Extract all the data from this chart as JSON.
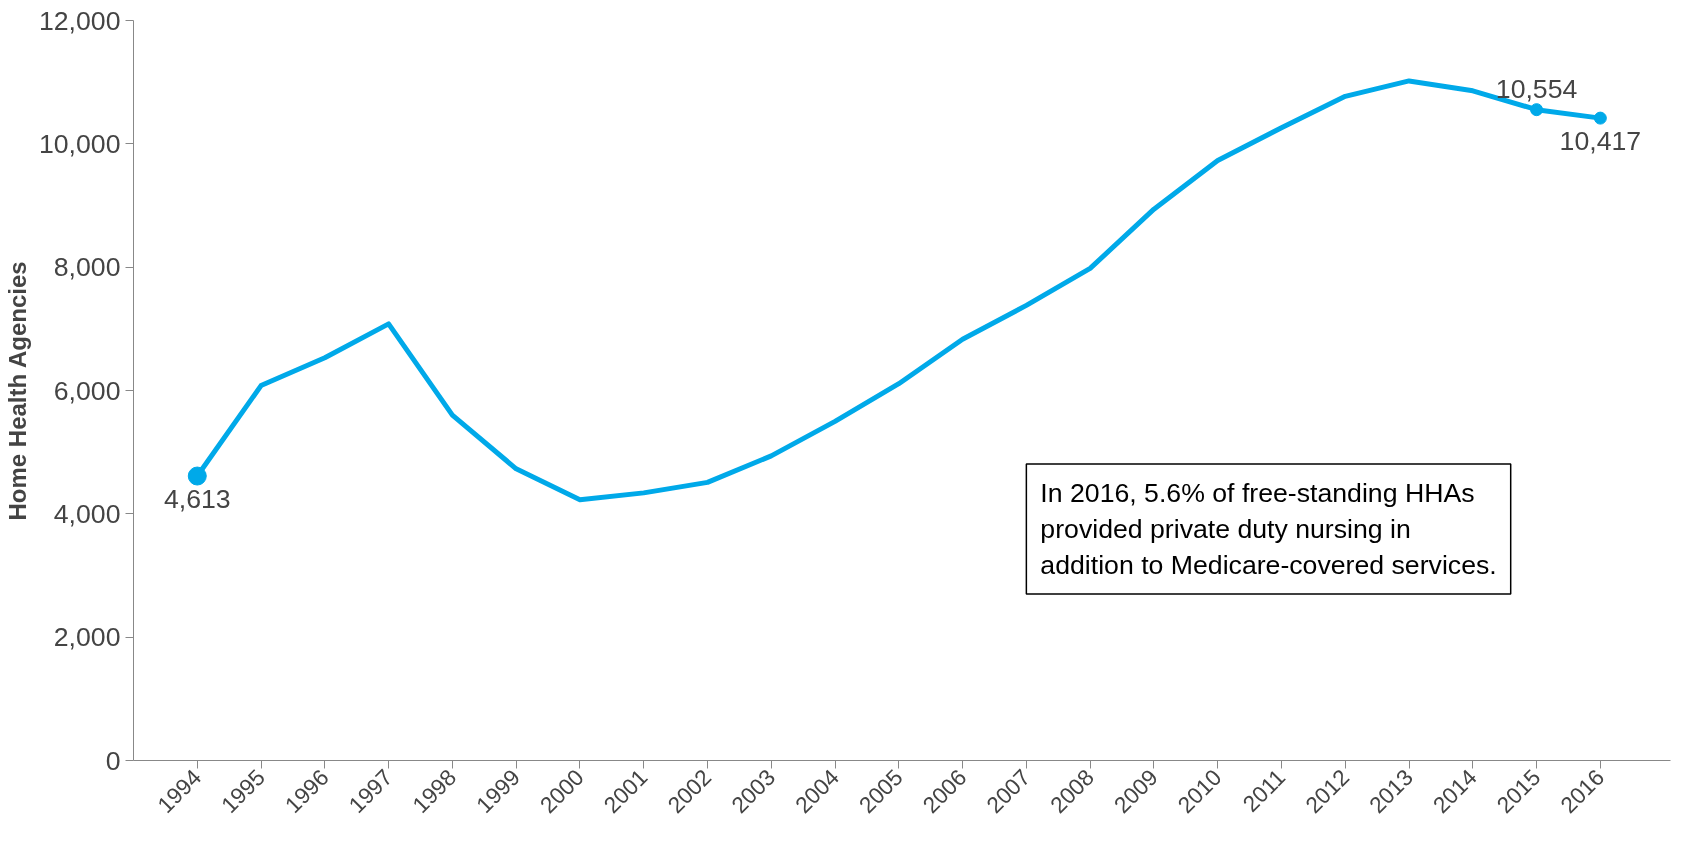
{
  "chart_data": {
    "type": "line",
    "ylabel": "Home Health Agencies",
    "categories": [
      "1994",
      "1995",
      "1996",
      "1997",
      "1998",
      "1999",
      "2000",
      "2001",
      "2002",
      "2003",
      "2004",
      "2005",
      "2006",
      "2007",
      "2008",
      "2009",
      "2010",
      "2011",
      "2012",
      "2013",
      "2014",
      "2015",
      "2016"
    ],
    "series": [
      {
        "color": "#00a9e9",
        "values": [
          4613,
          6080,
          6530,
          7080,
          5600,
          4730,
          4230,
          4340,
          4510,
          4940,
          5500,
          6110,
          6830,
          7380,
          7980,
          8940,
          9730,
          10260,
          10770,
          11020,
          10860,
          10554,
          10417
        ],
        "value_labels": [
          "4,613",
          null,
          null,
          null,
          null,
          null,
          null,
          null,
          null,
          null,
          null,
          null,
          null,
          null,
          null,
          null,
          null,
          null,
          null,
          null,
          null,
          "10,554",
          "10,417"
        ]
      }
    ],
    "ylim": [
      0,
      12000
    ],
    "yticks": [
      {
        "value": 0,
        "label": "0"
      },
      {
        "value": 2000,
        "label": "2,000"
      },
      {
        "value": 4000,
        "label": "4,000"
      },
      {
        "value": 6000,
        "label": "6,000"
      },
      {
        "value": 8000,
        "label": "8,000"
      },
      {
        "value": 10000,
        "label": "10,000"
      },
      {
        "value": 12000,
        "label": "12,000"
      }
    ],
    "grid": false,
    "annotations": [
      "In 2016, 5.6% of free-standing HHAs provided private duty nursing in addition to Medicare-covered services."
    ]
  }
}
